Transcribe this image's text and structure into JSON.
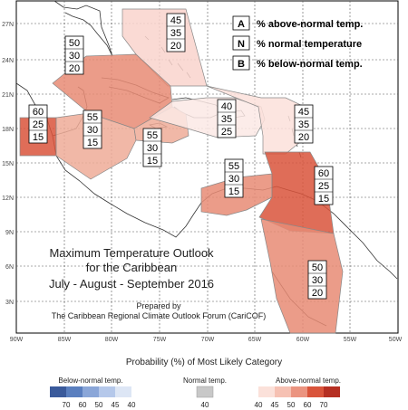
{
  "map": {
    "title_lines": [
      "Maximum Temperature Outlook",
      "for the Caribbean",
      "July - August - September 2016"
    ],
    "prepared_lines": [
      "Prepared by",
      "The Caribbean Regional Climate Outlook Forum (CariCOF)"
    ],
    "lat_labels": [
      "27N",
      "24N",
      "21N",
      "18N",
      "15N",
      "12N",
      "9N",
      "6N",
      "3N"
    ],
    "lon_labels": [
      "90W",
      "85W",
      "80W",
      "75W",
      "70W",
      "65W",
      "60W",
      "55W",
      "50W"
    ],
    "legend_keys": [
      {
        "letter": "A",
        "text": "% above-normal temp."
      },
      {
        "letter": "N",
        "text": "% normal temperature"
      },
      {
        "letter": "B",
        "text": "% below-normal temp."
      }
    ],
    "regions": [
      {
        "id": "florida-bahamas",
        "values": [
          "45",
          "35",
          "20"
        ],
        "fill": "#f9d4cd"
      },
      {
        "id": "northwest-caribbean",
        "values": [
          "50",
          "30",
          "20"
        ],
        "fill": "#e88b74"
      },
      {
        "id": "belize",
        "values": [
          "60",
          "25",
          "15"
        ],
        "fill": "#d9543b"
      },
      {
        "id": "jamaica",
        "values": [
          "55",
          "30",
          "15"
        ],
        "fill": "#eeab98"
      },
      {
        "id": "south-central-caribbean",
        "values": [
          "55",
          "30",
          "15"
        ],
        "fill": "#eeab98"
      },
      {
        "id": "hispaniola-puerto-rico",
        "values": [
          "40",
          "35",
          "25"
        ],
        "fill": "#fbe9e5"
      },
      {
        "id": "leeward-islands",
        "values": [
          "45",
          "35",
          "20"
        ],
        "fill": "#fbe1da"
      },
      {
        "id": "southeast-caribbean-windwards",
        "values": [
          "55",
          "30",
          "15"
        ],
        "fill": "#e88b74"
      },
      {
        "id": "eastern-caribbean-windwards",
        "values": [
          "60",
          "25",
          "15"
        ],
        "fill": "#d9543b"
      },
      {
        "id": "guianas",
        "values": [
          "50",
          "30",
          "20"
        ],
        "fill": "#e88b74"
      }
    ],
    "scale_title": "Probability (%) of Most Likely Category",
    "scale_groups": [
      {
        "label": "Below-normal temp.",
        "ticks": [
          "70",
          "60",
          "50",
          "45",
          "40"
        ],
        "colors": [
          "#3a5a9b",
          "#5a7fbf",
          "#8aa6d8",
          "#b5c8ea",
          "#dde6f5"
        ]
      },
      {
        "label": "Normal temp.",
        "ticks": [
          "40"
        ],
        "colors": [
          "#c8c8c8"
        ]
      },
      {
        "label": "Above-normal temp.",
        "ticks": [
          "40",
          "45",
          "50",
          "60",
          "70"
        ],
        "colors": [
          "#fbe1da",
          "#f6c1b3",
          "#eb9480",
          "#d9543b",
          "#b52f22"
        ]
      }
    ]
  }
}
